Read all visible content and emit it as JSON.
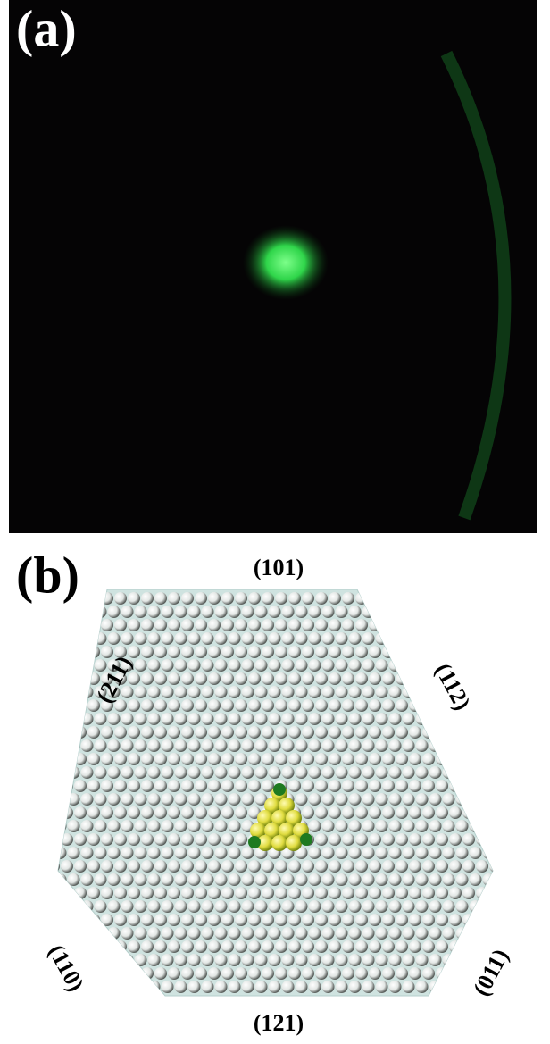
{
  "panels": [
    {
      "label": "(a)"
    },
    {
      "label": "(b)",
      "facets": [
        "(101)",
        "(211)",
        "(112)",
        "(110)",
        "(011)",
        "(121)"
      ]
    }
  ]
}
